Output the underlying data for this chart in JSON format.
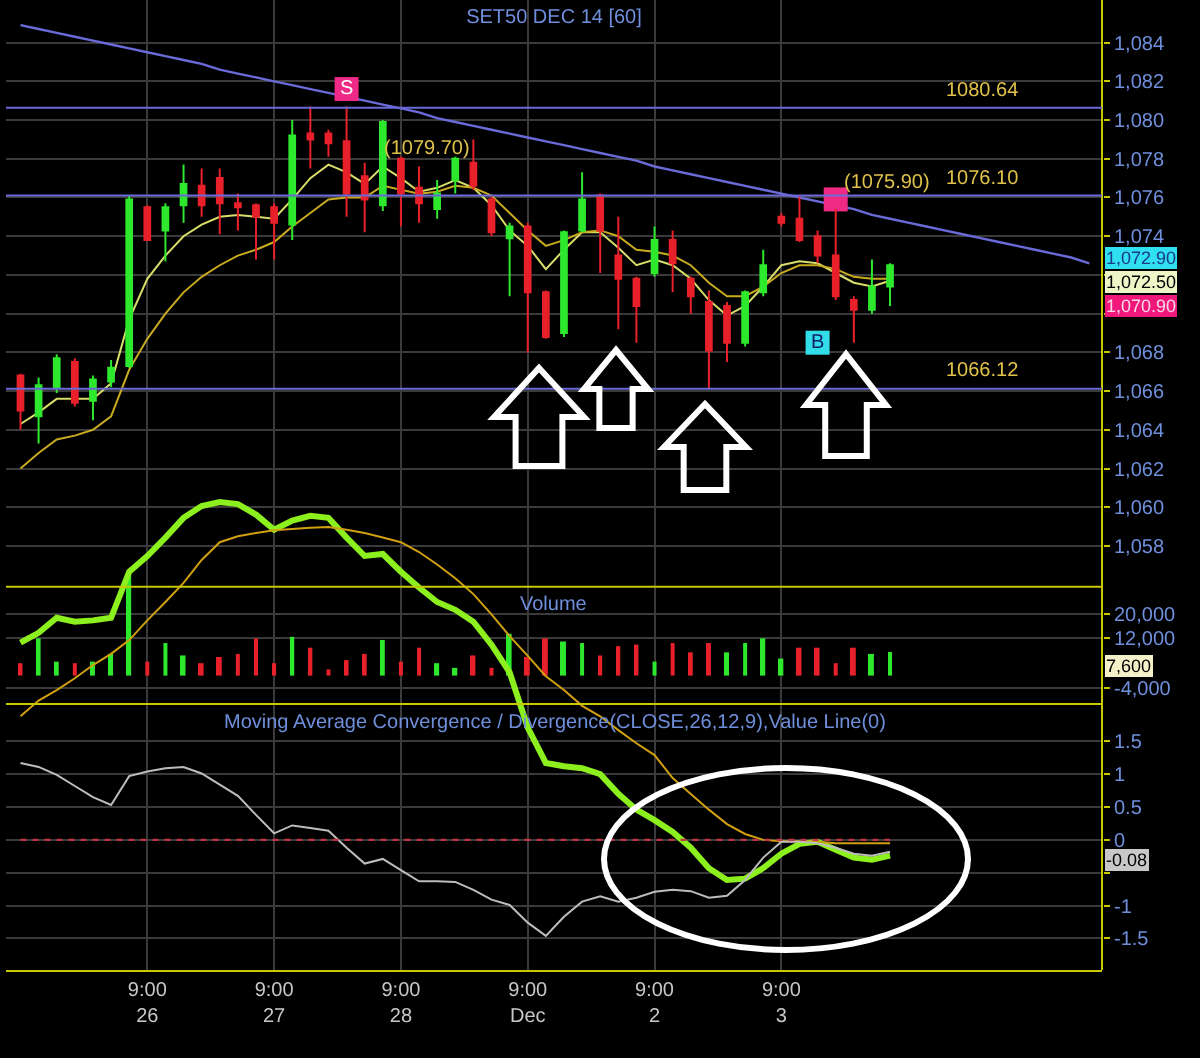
{
  "chart_data": {
    "type": "candlestick",
    "title": "SET50 DEC 14 [60]",
    "categories": [
      null,
      null,
      null,
      null,
      null,
      null,
      null,
      "9:00\n26",
      null,
      null,
      null,
      null,
      null,
      null,
      "9:00\n27",
      null,
      null,
      null,
      null,
      null,
      null,
      "9:00\n28",
      null,
      null,
      null,
      null,
      null,
      null,
      "9:00\nDec",
      null,
      null,
      null,
      null,
      null,
      null,
      "9:00\n2",
      null,
      null,
      null,
      null,
      null,
      null,
      "9:00\n3",
      null,
      null,
      null,
      null,
      null,
      null,
      null,
      null,
      null,
      null,
      null,
      null,
      null,
      null,
      null,
      null,
      null
    ],
    "ohlc": [
      [
        1066.8,
        1066.9,
        1064.0,
        1065.0
      ],
      [
        1064.7,
        1066.7,
        1063.3,
        1066.3
      ],
      [
        1066.2,
        1067.9,
        1065.9,
        1067.7
      ],
      [
        1067.5,
        1067.7,
        1065.2,
        1065.4
      ],
      [
        1065.5,
        1066.8,
        1064.5,
        1066.6
      ],
      [
        1066.5,
        1067.6,
        1066.2,
        1067.2
      ],
      [
        1067.3,
        1076.1,
        1067.2,
        1075.9
      ],
      [
        1075.5,
        1075.6,
        1073.8,
        1073.8
      ],
      [
        1074.3,
        1075.7,
        1072.7,
        1075.5
      ],
      [
        1075.6,
        1077.7,
        1074.7,
        1076.7
      ],
      [
        1076.6,
        1077.5,
        1075.0,
        1075.6
      ],
      [
        1077.0,
        1077.5,
        1074.1,
        1075.7
      ],
      [
        1075.7,
        1076.2,
        1074.3,
        1075.5
      ],
      [
        1075.6,
        1075.7,
        1072.8,
        1075.0
      ],
      [
        1075.5,
        1075.7,
        1072.8,
        1074.7
      ],
      [
        1074.6,
        1080.0,
        1073.8,
        1079.2
      ],
      [
        1079.3,
        1080.7,
        1077.5,
        1079.0
      ],
      [
        1079.3,
        1079.5,
        1078.1,
        1078.8
      ],
      [
        1078.9,
        1080.7,
        1075.0,
        1076.2
      ],
      [
        1077.1,
        1077.8,
        1074.2,
        1075.9
      ],
      [
        1075.6,
        1080.0,
        1075.3,
        1079.9
      ],
      [
        1078.0,
        1078.1,
        1074.5,
        1076.2
      ],
      [
        1076.5,
        1077.6,
        1074.7,
        1075.7
      ],
      [
        1075.4,
        1076.9,
        1074.9,
        1076.2
      ],
      [
        1076.9,
        1078.1,
        1076.2,
        1078.0
      ],
      [
        1077.8,
        1079.0,
        1076.4,
        1076.6
      ],
      [
        1075.9,
        1076.1,
        1074.0,
        1074.2
      ],
      [
        1073.9,
        1074.7,
        1070.9,
        1074.5
      ],
      [
        1074.5,
        1074.7,
        1068.0,
        1071.1
      ],
      [
        1071.1,
        1071.2,
        1068.7,
        1068.8
      ],
      [
        1069.0,
        1074.3,
        1068.8,
        1074.2
      ],
      [
        1074.3,
        1077.3,
        1074.2,
        1075.9
      ],
      [
        1076.1,
        1076.2,
        1072.1,
        1074.3
      ],
      [
        1073.0,
        1075.0,
        1069.2,
        1071.8
      ],
      [
        1071.8,
        1071.9,
        1068.5,
        1070.4
      ],
      [
        1072.1,
        1074.5,
        1071.9,
        1073.8
      ],
      [
        1073.8,
        1074.3,
        1071.1,
        1072.6
      ],
      [
        1071.8,
        1071.9,
        1070.0,
        1070.9
      ],
      [
        1070.6,
        1071.2,
        1066.1,
        1068.1
      ],
      [
        1070.4,
        1070.6,
        1067.5,
        1068.5
      ],
      [
        1068.5,
        1071.2,
        1068.3,
        1071.1
      ],
      [
        1071.1,
        1073.3,
        1070.9,
        1072.5
      ],
      [
        1075.0,
        1075.2,
        1074.5,
        1074.7
      ],
      [
        1074.9,
        1076.1,
        1073.7,
        1073.8
      ],
      [
        1074.0,
        1074.3,
        1072.6,
        1073.0
      ],
      [
        1073.0,
        1075.4,
        1070.7,
        1070.9
      ],
      [
        1070.7,
        1070.9,
        1068.5,
        1070.2
      ],
      [
        1070.2,
        1072.8,
        1070.0,
        1071.4
      ],
      [
        1071.4,
        1072.6,
        1070.4,
        1072.5
      ],
      null,
      null,
      null,
      null,
      null,
      null,
      null,
      null,
      null,
      null,
      null
    ],
    "colors": [
      "#e8202a",
      "#2ee82e",
      "#2ee82e",
      "#e8202a",
      "#2ee82e",
      "#2ee82e",
      "#2ee82e",
      "#e8202a",
      "#2ee82e",
      "#2ee82e",
      "#e8202a",
      "#e8202a",
      "#e8202a",
      "#e8202a",
      "#e8202a",
      "#2ee82e",
      "#e8202a",
      "#e8202a",
      "#e8202a",
      "#e8202a",
      "#2ee82e",
      "#e8202a",
      "#e8202a",
      "#2ee82e",
      "#2ee82e",
      "#e8202a",
      "#e8202a",
      "#2ee82e",
      "#e8202a",
      "#e8202a",
      "#2ee82e",
      "#2ee82e",
      "#e8202a",
      "#e8202a",
      "#e8202a",
      "#2ee82e",
      "#e8202a",
      "#e8202a",
      "#e8202a",
      "#e8202a",
      "#2ee82e",
      "#2ee82e",
      "#e8202a",
      "#e8202a",
      "#e8202a",
      "#e8202a",
      "#e8202a",
      "#2ee82e",
      "#2ee82e",
      null,
      null,
      null,
      null,
      null,
      null,
      null,
      null,
      null,
      null,
      null
    ],
    "ylim": [
      1036.1,
      1086.2
    ],
    "yticks": [
      {
        "value": 1058,
        "label": "1,058"
      },
      {
        "value": 1060,
        "label": "1,060"
      },
      {
        "value": 1062,
        "label": "1,062"
      },
      {
        "value": 1064,
        "label": "1,064"
      },
      {
        "value": 1066,
        "label": "1,066"
      },
      {
        "value": 1068,
        "label": "1,068"
      },
      {
        "value": 1070,
        "label": null
      },
      {
        "value": 1072,
        "label": null
      },
      {
        "value": 1074,
        "label": "1,074"
      },
      {
        "value": 1076,
        "label": "1,076"
      },
      {
        "value": 1078,
        "label": "1,078"
      },
      {
        "value": 1080,
        "label": "1,080"
      },
      {
        "value": 1082,
        "label": "1,082"
      },
      {
        "value": 1084,
        "label": "1,084"
      }
    ],
    "y2lim": [
      -95000,
      218000
    ],
    "y2ticks": [
      {
        "value": -4000,
        "label": "-4,000"
      },
      {
        "value": 12000,
        "label": "12,000"
      },
      {
        "value": 20000,
        "label": "20,000"
      }
    ],
    "y3lim": [
      -1.98,
      12.78
    ],
    "y3ticks": [
      -1.5,
      -1,
      {
        "value": -0.5,
        "label": null
      },
      0,
      0.5,
      1,
      1.5
    ],
    "series": [
      {
        "type": "line",
        "color": "#d8dc68",
        "values": [
          1064.3,
          1064.9,
          1065.6,
          1065.6,
          1065.6,
          1066.4,
          1069.7,
          1071.8,
          1073.0,
          1074.0,
          1074.6,
          1075.0,
          1075.1,
          1075.0,
          1074.9,
          1075.9,
          1077.0,
          1077.7,
          1077.3,
          1076.7,
          1077.6,
          1077.0,
          1076.3,
          1076.5,
          1076.9,
          1076.5,
          1075.6,
          1074.3,
          1073.5,
          1072.3,
          1073.3,
          1074.2,
          1074.2,
          1073.4,
          1072.5,
          1072.8,
          1072.5,
          1071.8,
          1070.7,
          1069.9,
          1070.4,
          1071.4,
          1072.5,
          1072.7,
          1072.6,
          1072.1,
          1071.6,
          1071.4,
          1071.7,
          null,
          null,
          null,
          null,
          null,
          null,
          null,
          null,
          null,
          null,
          null
        ]
      },
      {
        "type": "line",
        "color": "#c8aa20",
        "values": [
          1062.0,
          1062.8,
          1063.5,
          1063.7,
          1064.0,
          1064.7,
          1067.1,
          1068.7,
          1070.0,
          1071.1,
          1071.9,
          1072.5,
          1073.0,
          1073.3,
          1073.7,
          1074.5,
          1075.2,
          1075.9,
          1076.0,
          1076.0,
          1076.6,
          1076.4,
          1076.2,
          1076.3,
          1076.6,
          1076.5,
          1076.1,
          1075.2,
          1074.3,
          1073.5,
          1073.8,
          1074.2,
          1074.3,
          1074.0,
          1073.3,
          1073.2,
          1073.0,
          1072.5,
          1071.6,
          1070.9,
          1070.9,
          1071.4,
          1072.1,
          1072.5,
          1072.5,
          1072.3,
          1071.9,
          1071.8,
          1071.8,
          null,
          null,
          null,
          null,
          null,
          null,
          null,
          null,
          null,
          null,
          null
        ]
      },
      {
        "type": "line",
        "color": "#6a6ad8",
        "values": [
          1084.9,
          1084.7,
          1084.5,
          1084.3,
          1084.1,
          1083.9,
          1083.7,
          1083.5,
          1083.3,
          1083.1,
          1082.9,
          1082.6,
          1082.4,
          1082.2,
          1082.0,
          1081.8,
          1081.6,
          1081.4,
          1081.2,
          1081.0,
          1080.8,
          1080.6,
          1080.4,
          1080.1,
          1079.9,
          1079.7,
          1079.5,
          1079.3,
          1079.1,
          1078.9,
          1078.7,
          1078.5,
          1078.3,
          1078.1,
          1077.9,
          1077.6,
          1077.4,
          1077.2,
          1077.0,
          1076.8,
          1076.6,
          1076.4,
          1076.2,
          1076.0,
          1075.8,
          1075.6,
          1075.4,
          1075.1,
          1074.9,
          1074.7,
          1074.5,
          1074.3,
          1074.1,
          1073.9,
          1073.7,
          1073.5,
          1073.3,
          1073.1,
          1072.9,
          1072.6
        ]
      },
      {
        "type": "scatter",
        "marker": "square",
        "color": "#ee2a86",
        "values": [
          null,
          null,
          null,
          null,
          null,
          null,
          null,
          null,
          null,
          null,
          null,
          null,
          null,
          null,
          null,
          null,
          null,
          null,
          1081.6,
          null,
          null,
          null,
          null,
          null,
          null,
          null,
          null,
          null,
          null,
          null,
          null,
          null,
          null,
          null,
          null,
          null,
          null,
          null,
          null,
          null,
          null,
          null,
          null,
          null,
          null,
          1075.9,
          null,
          null,
          null,
          null,
          null,
          null,
          null,
          null,
          null,
          null,
          null,
          null,
          null,
          null
        ],
        "value_labels": [
          null,
          null,
          null,
          null,
          null,
          null,
          null,
          null,
          null,
          null,
          null,
          null,
          null,
          null,
          null,
          null,
          null,
          null,
          "S",
          null,
          null,
          null,
          null,
          null,
          null,
          null,
          null,
          null,
          null,
          null,
          null,
          null,
          null,
          null,
          null,
          null,
          null,
          null,
          null,
          null,
          null,
          null,
          null,
          null,
          null,
          null,
          null,
          null,
          null,
          null,
          null,
          null,
          null,
          null,
          null,
          null,
          null,
          null,
          null,
          null
        ]
      },
      {
        "type": "scatter",
        "marker": "square",
        "color": "#33dde8",
        "values": [
          null,
          null,
          null,
          null,
          null,
          null,
          null,
          null,
          null,
          null,
          null,
          null,
          null,
          null,
          null,
          null,
          null,
          null,
          null,
          null,
          null,
          null,
          null,
          null,
          null,
          null,
          null,
          null,
          null,
          null,
          null,
          null,
          null,
          null,
          null,
          null,
          null,
          null,
          null,
          null,
          null,
          null,
          null,
          null,
          1068.5,
          null,
          null,
          null,
          null,
          null,
          null,
          null,
          null,
          null,
          null,
          null,
          null,
          null,
          null,
          null
        ],
        "value_labels": [
          null,
          null,
          null,
          null,
          null,
          null,
          null,
          null,
          null,
          null,
          null,
          null,
          null,
          null,
          null,
          null,
          null,
          null,
          null,
          null,
          null,
          null,
          null,
          null,
          null,
          null,
          null,
          null,
          null,
          null,
          null,
          null,
          null,
          null,
          null,
          null,
          null,
          null,
          null,
          null,
          null,
          null,
          null,
          null,
          "B",
          null,
          null,
          null,
          null,
          null,
          null,
          null,
          null,
          null,
          null,
          null,
          null,
          null,
          null,
          null
        ]
      },
      {
        "type": "bar",
        "axis": "y2",
        "colors": [
          "#e8202a",
          "#2ee82e",
          "#2ee82e",
          "#e8202a",
          "#2ee82e",
          "#2ee82e",
          "#2ee82e",
          "#e8202a",
          "#2ee82e",
          "#2ee82e",
          "#e8202a",
          "#e8202a",
          "#e8202a",
          "#e8202a",
          "#e8202a",
          "#2ee82e",
          "#e8202a",
          "#e8202a",
          "#e8202a",
          "#e8202a",
          "#2ee82e",
          "#e8202a",
          "#e8202a",
          "#2ee82e",
          "#2ee82e",
          "#e8202a",
          "#e8202a",
          "#2ee82e",
          "#e8202a",
          "#e8202a",
          "#2ee82e",
          "#2ee82e",
          "#e8202a",
          "#e8202a",
          "#e8202a",
          "#2ee82e",
          "#e8202a",
          "#e8202a",
          "#e8202a",
          "#2ee82e",
          "#2ee82e",
          "#2ee82e",
          "#2ee82e",
          "#e8202a",
          "#e8202a",
          "#e8202a",
          "#e8202a",
          "#2ee82e",
          "#2ee82e",
          null,
          null,
          null,
          null,
          null,
          null,
          null,
          null,
          null,
          null,
          null
        ],
        "values": [
          4000,
          12000,
          4500,
          4000,
          4500,
          7000,
          33500,
          4500,
          10500,
          6500,
          4000,
          6000,
          7000,
          12000,
          4000,
          12500,
          9000,
          2000,
          5000,
          7000,
          11500,
          4500,
          9000,
          4000,
          2500,
          6500,
          2500,
          13500,
          6000,
          12000,
          11000,
          10500,
          6500,
          9500,
          10000,
          4500,
          10500,
          7500,
          10500,
          7500,
          10500,
          12000,
          5500,
          9000,
          9000,
          4000,
          9000,
          7000,
          7600,
          null,
          null,
          null,
          null,
          null,
          null,
          null,
          null,
          null,
          null,
          null
        ]
      },
      {
        "type": "line",
        "axis": "y3",
        "color": "#8cf01e",
        "values": [
          3.0,
          3.15,
          3.38,
          3.32,
          3.34,
          3.38,
          4.08,
          4.32,
          4.6,
          4.9,
          5.08,
          5.14,
          5.11,
          4.95,
          4.72,
          4.86,
          4.93,
          4.9,
          4.6,
          4.32,
          4.35,
          4.08,
          3.84,
          3.62,
          3.5,
          3.32,
          2.97,
          2.55,
          1.71,
          1.17,
          1.12,
          1.09,
          1.0,
          0.7,
          0.46,
          0.3,
          0.12,
          -0.12,
          -0.43,
          -0.61,
          -0.59,
          -0.43,
          -0.21,
          -0.06,
          -0.03,
          -0.15,
          -0.27,
          -0.3,
          -0.24,
          null,
          null,
          null,
          null,
          null,
          null,
          null,
          null,
          null,
          null,
          null
        ]
      },
      {
        "type": "line",
        "axis": "y3",
        "color": "#d0a010",
        "values": [
          1.88,
          2.12,
          2.28,
          2.46,
          2.66,
          2.83,
          3.04,
          3.34,
          3.62,
          3.91,
          4.26,
          4.53,
          4.62,
          4.67,
          4.71,
          4.73,
          4.75,
          4.76,
          4.72,
          4.67,
          4.6,
          4.53,
          4.38,
          4.19,
          3.98,
          3.74,
          3.43,
          3.1,
          2.8,
          2.49,
          2.28,
          2.04,
          1.88,
          1.67,
          1.47,
          1.29,
          0.94,
          0.7,
          0.46,
          0.24,
          0.09,
          0.0,
          -0.02,
          -0.02,
          -0.03,
          -0.05,
          -0.05,
          -0.05,
          -0.05,
          null,
          null,
          null,
          null,
          null,
          null,
          null,
          null,
          null,
          null,
          null
        ]
      },
      {
        "type": "line",
        "axis": "y3",
        "color": "#bcbcbc",
        "values": [
          1.17,
          1.11,
          0.99,
          0.82,
          0.65,
          0.53,
          0.97,
          1.04,
          1.09,
          1.11,
          1.01,
          0.84,
          0.67,
          0.38,
          0.1,
          0.22,
          0.18,
          0.14,
          -0.12,
          -0.36,
          -0.29,
          -0.46,
          -0.63,
          -0.63,
          -0.64,
          -0.76,
          -0.91,
          -0.99,
          -1.26,
          -1.46,
          -1.17,
          -0.94,
          -0.86,
          -0.94,
          -0.88,
          -0.79,
          -0.76,
          -0.78,
          -0.88,
          -0.85,
          -0.61,
          -0.27,
          -0.03,
          -0.03,
          -0.05,
          -0.12,
          -0.21,
          -0.24,
          -0.18,
          null,
          null,
          null,
          null,
          null,
          null,
          null,
          null,
          null,
          null,
          null
        ]
      },
      {
        "type": "line",
        "axis": "y3",
        "color": "#c03848",
        "line_style": "dotted",
        "values": [
          0,
          0,
          0,
          0,
          0,
          0,
          0,
          0,
          0,
          0,
          0,
          0,
          0,
          0,
          0,
          0,
          0,
          0,
          0,
          0,
          0,
          0,
          0,
          0,
          0,
          0,
          0,
          0,
          0,
          0,
          0,
          0,
          0,
          0,
          0,
          0,
          0,
          0,
          0,
          0,
          0,
          0,
          0,
          0,
          0,
          0,
          0,
          0,
          0,
          null,
          null,
          null,
          null,
          null,
          null,
          null,
          null,
          null,
          null,
          null
        ]
      }
    ],
    "ref_lines": [
      {
        "axis": "y",
        "value": 1080.64,
        "label": "1080.64",
        "color": "#6a6ad8"
      },
      {
        "axis": "y",
        "value": 1076.1,
        "label": "1076.10",
        "color": "#6a6ad8"
      },
      {
        "axis": "y",
        "value": 1066.12,
        "label": "1066.12",
        "color": "#6a6ad8"
      },
      {
        "axis": "y",
        "value": 1055.9,
        "color": "#c8c800"
      },
      {
        "axis": "y2",
        "value": -9200,
        "color": "#c8c800"
      }
    ],
    "annotations": [
      "Volume",
      "Moving Average Convergence / Divergence(CLOSE,26,12,9),Value Line(0)",
      "(1079.70)",
      "(1075.90)",
      "1,072.90",
      "1,072.50",
      "1,070.90",
      "7,600",
      "-0.08"
    ],
    "grid": true
  }
}
